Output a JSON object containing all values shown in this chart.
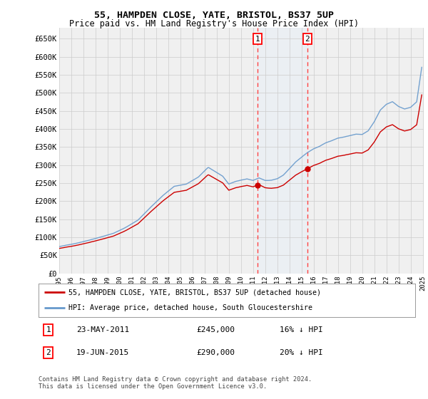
{
  "title": "55, HAMPDEN CLOSE, YATE, BRISTOL, BS37 5UP",
  "subtitle": "Price paid vs. HM Land Registry's House Price Index (HPI)",
  "ylabel_ticks": [
    "£0",
    "£50K",
    "£100K",
    "£150K",
    "£200K",
    "£250K",
    "£300K",
    "£350K",
    "£400K",
    "£450K",
    "£500K",
    "£550K",
    "£600K",
    "£650K"
  ],
  "ytick_values": [
    0,
    50000,
    100000,
    150000,
    200000,
    250000,
    300000,
    350000,
    400000,
    450000,
    500000,
    550000,
    600000,
    650000
  ],
  "ylim": [
    0,
    680000
  ],
  "sale1_price": 245000,
  "sale1_x": 2011.39,
  "sale2_price": 290000,
  "sale2_x": 2015.47,
  "legend_line1": "55, HAMPDEN CLOSE, YATE, BRISTOL, BS37 5UP (detached house)",
  "legend_line2": "HPI: Average price, detached house, South Gloucestershire",
  "footnote": "Contains HM Land Registry data © Crown copyright and database right 2024.\nThis data is licensed under the Open Government Licence v3.0.",
  "line_color_red": "#cc0000",
  "line_color_blue": "#6699cc",
  "grid_color": "#cccccc",
  "background_color": "#ffffff",
  "plot_bg_color": "#f0f0f0",
  "shade_color": "#ddeeff",
  "dashed_color": "#ff4444"
}
